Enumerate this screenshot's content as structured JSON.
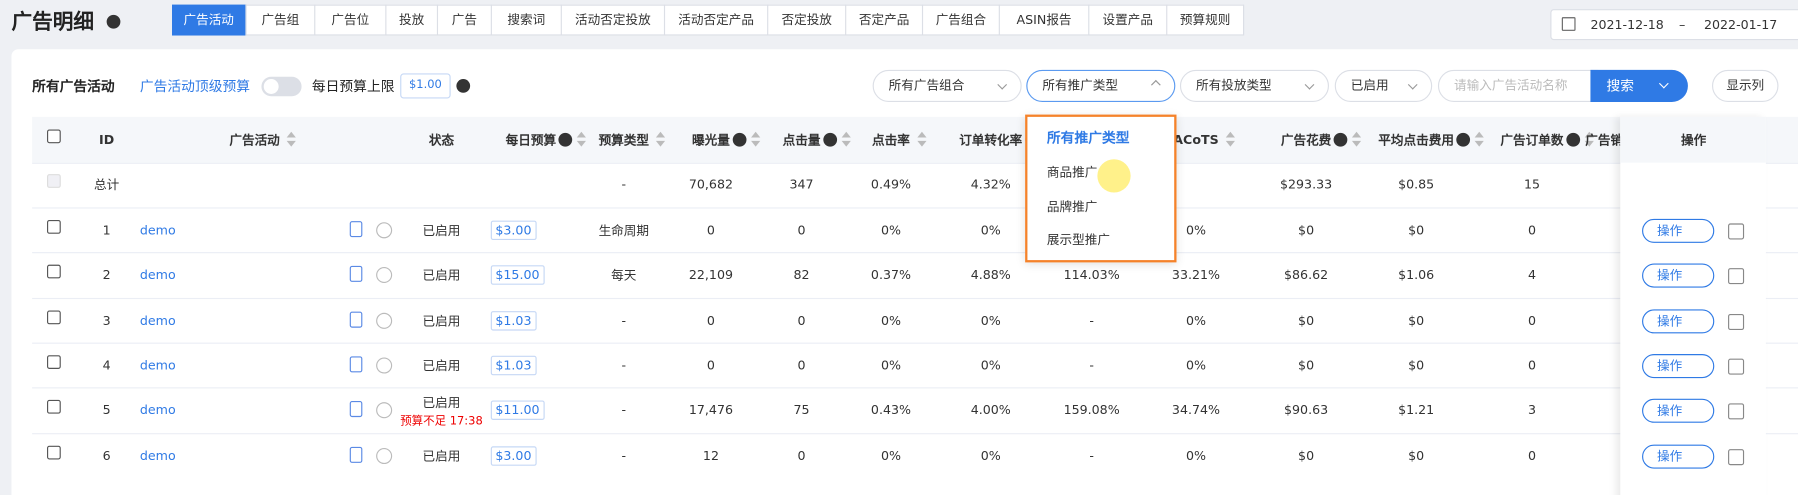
{
  "header": {
    "title": "广告明细",
    "tabs": [
      "广告活动",
      "广告组",
      "广告位",
      "投放",
      "广告",
      "搜索词",
      "活动否定投放",
      "活动否定产品",
      "否定投放",
      "否定产品",
      "广告组合",
      "ASIN报告",
      "设置产品",
      "预算规则"
    ],
    "date_start": "2021-12-18",
    "date_separator": "–",
    "date_end": "2022-01-17"
  },
  "toolbar": {
    "label": "所有广告活动",
    "link": "广告活动顶级预算",
    "budget_label": "每日预算上限",
    "budget_value": "$1.00",
    "filters": [
      "所有广告组合",
      "所有推广类型",
      "所有投放类型",
      "已启用"
    ],
    "search_placeholder": "请输入广告活动名称",
    "search_button": "搜索",
    "columns_button": "显示列"
  },
  "dropdown": {
    "items": [
      "所有推广类型",
      "商品推广",
      "品牌推广",
      "展示型推广"
    ]
  },
  "table": {
    "columns": [
      "ID",
      "广告活动",
      "状态",
      "每日预算",
      "预算类型",
      "曝光量",
      "点击量",
      "点击率",
      "订单转化率",
      "ACoTS",
      "广告花费",
      "平均点击费用",
      "广告订单数",
      "广告销售额"
    ],
    "action_header": "操作",
    "action_button": "操作",
    "total": [
      "总计",
      null,
      null,
      null,
      "-",
      "70,682",
      "347",
      "0.49%",
      "4.32%",
      null,
      null,
      "$293.33",
      "$0.85",
      "15"
    ],
    "rows": [
      {
        "cells": [
          "1",
          "demo",
          "已启用",
          "$3.00",
          "生命周期",
          "0",
          "0",
          "0%",
          "0%",
          null,
          "0%",
          "$0",
          "$0",
          "0"
        ]
      },
      {
        "cells": [
          "2",
          "demo",
          "已启用",
          "$15.00",
          "每天",
          "22,109",
          "82",
          "0.37%",
          "4.88%",
          "114.03%",
          "33.21%",
          "$86.62",
          "$1.06",
          "4"
        ]
      },
      {
        "cells": [
          "3",
          "demo",
          "已启用",
          "$1.03",
          "-",
          "0",
          "0",
          "0%",
          "0%",
          "-",
          "0%",
          "$0",
          "$0",
          "0"
        ]
      },
      {
        "cells": [
          "4",
          "demo",
          "已启用",
          "$1.03",
          "-",
          "0",
          "0",
          "0%",
          "0%",
          "-",
          "0%",
          "$0",
          "$0",
          "0"
        ]
      },
      {
        "cells": [
          "5",
          "demo",
          "已启用",
          "$11.00",
          "-",
          "17,476",
          "75",
          "0.43%",
          "4.00%",
          "159.08%",
          "34.74%",
          "$90.63",
          "$1.21",
          "3"
        ],
        "note": "预算不足 17:38"
      },
      {
        "cells": [
          "6",
          "demo",
          "已启用",
          "$3.00",
          "-",
          "12",
          "0",
          "0%",
          "0%",
          "-",
          "0%",
          "$0",
          "$0",
          "0"
        ]
      }
    ]
  }
}
